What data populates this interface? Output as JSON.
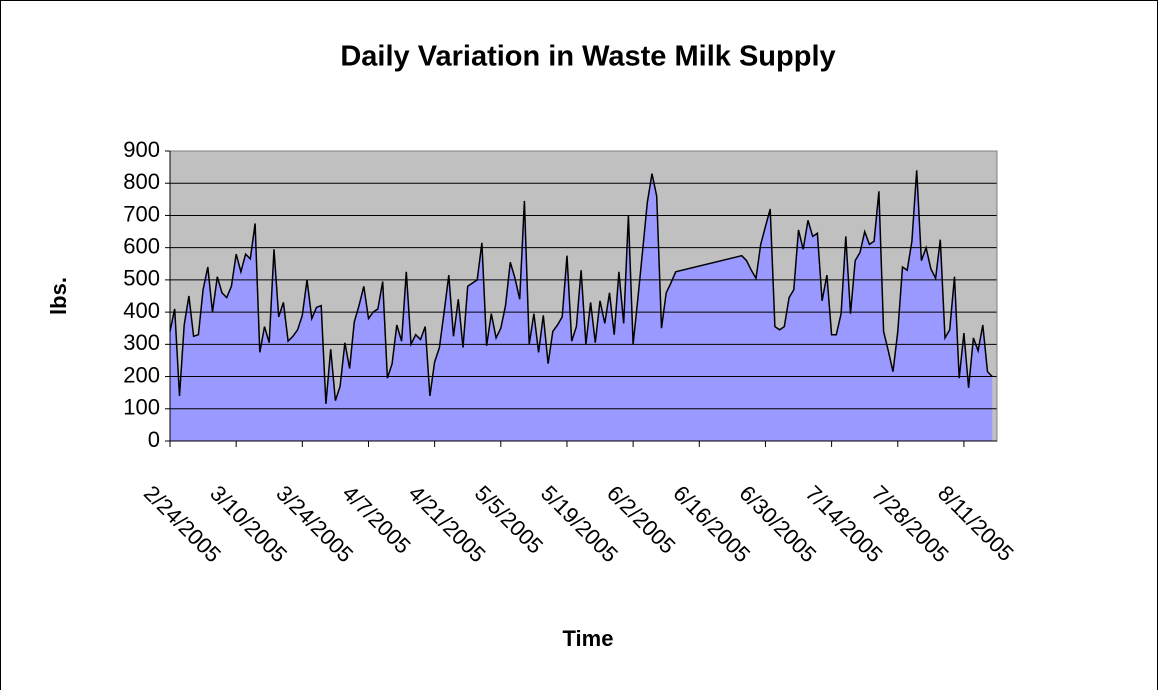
{
  "chart_data": {
    "type": "area",
    "title": "Daily Variation in Waste Milk Supply",
    "x_label": "Time",
    "y_label": "lbs.",
    "x": [
      "2/24/2005",
      "2/25/2005",
      "2/26/2005",
      "2/27/2005",
      "2/28/2005",
      "3/1/2005",
      "3/2/2005",
      "3/3/2005",
      "3/4/2005",
      "3/5/2005",
      "3/6/2005",
      "3/7/2005",
      "3/8/2005",
      "3/9/2005",
      "3/10/2005",
      "3/11/2005",
      "3/12/2005",
      "3/13/2005",
      "3/14/2005",
      "3/15/2005",
      "3/16/2005",
      "3/17/2005",
      "3/18/2005",
      "3/19/2005",
      "3/20/2005",
      "3/21/2005",
      "3/22/2005",
      "3/23/2005",
      "3/24/2005",
      "3/25/2005",
      "3/26/2005",
      "3/27/2005",
      "3/28/2005",
      "3/29/2005",
      "3/30/2005",
      "3/31/2005",
      "4/1/2005",
      "4/2/2005",
      "4/3/2005",
      "4/4/2005",
      "4/5/2005",
      "4/6/2005",
      "4/7/2005",
      "4/8/2005",
      "4/9/2005",
      "4/10/2005",
      "4/11/2005",
      "4/12/2005",
      "4/13/2005",
      "4/14/2005",
      "4/15/2005",
      "4/16/2005",
      "4/17/2005",
      "4/18/2005",
      "4/19/2005",
      "4/20/2005",
      "4/21/2005",
      "4/22/2005",
      "4/23/2005",
      "4/24/2005",
      "4/25/2005",
      "4/26/2005",
      "4/27/2005",
      "4/28/2005",
      "4/29/2005",
      "4/30/2005",
      "5/1/2005",
      "5/2/2005",
      "5/3/2005",
      "5/4/2005",
      "5/5/2005",
      "5/6/2005",
      "5/7/2005",
      "5/8/2005",
      "5/9/2005",
      "5/10/2005",
      "5/11/2005",
      "5/12/2005",
      "5/13/2005",
      "5/14/2005",
      "5/15/2005",
      "5/16/2005",
      "5/17/2005",
      "5/18/2005",
      "5/19/2005",
      "5/20/2005",
      "5/21/2005",
      "5/22/2005",
      "5/23/2005",
      "5/24/2005",
      "5/25/2005",
      "5/26/2005",
      "5/27/2005",
      "5/28/2005",
      "5/29/2005",
      "5/30/2005",
      "5/31/2005",
      "6/1/2005",
      "6/2/2005",
      "6/3/2005",
      "6/4/2005",
      "6/5/2005",
      "6/6/2005",
      "6/7/2005",
      "6/8/2005",
      "6/9/2005",
      "6/10/2005",
      "6/11/2005",
      "6/25/2005",
      "6/26/2005",
      "6/27/2005",
      "6/28/2005",
      "6/29/2005",
      "6/30/2005",
      "7/1/2005",
      "7/2/2005",
      "7/3/2005",
      "7/4/2005",
      "7/5/2005",
      "7/6/2005",
      "7/7/2005",
      "7/8/2005",
      "7/9/2005",
      "7/10/2005",
      "7/11/2005",
      "7/12/2005",
      "7/13/2005",
      "7/14/2005",
      "7/15/2005",
      "7/16/2005",
      "7/17/2005",
      "7/18/2005",
      "7/19/2005",
      "7/20/2005",
      "7/21/2005",
      "7/22/2005",
      "7/23/2005",
      "7/24/2005",
      "7/25/2005",
      "7/26/2005",
      "7/27/2005",
      "7/28/2005",
      "7/29/2005",
      "7/30/2005",
      "7/31/2005",
      "8/1/2005",
      "8/2/2005",
      "8/3/2005",
      "8/4/2005",
      "8/5/2005",
      "8/6/2005",
      "8/7/2005",
      "8/8/2005",
      "8/9/2005",
      "8/10/2005",
      "8/11/2005",
      "8/12/2005",
      "8/13/2005",
      "8/14/2005",
      "8/15/2005",
      "8/16/2005",
      "8/17/2005"
    ],
    "values": [
      340,
      410,
      140,
      360,
      450,
      325,
      330,
      470,
      540,
      400,
      510,
      460,
      445,
      480,
      580,
      525,
      580,
      565,
      675,
      275,
      355,
      305,
      595,
      385,
      430,
      310,
      325,
      345,
      390,
      500,
      380,
      415,
      420,
      115,
      285,
      125,
      170,
      305,
      225,
      370,
      420,
      480,
      380,
      400,
      410,
      495,
      195,
      240,
      360,
      310,
      525,
      300,
      330,
      315,
      355,
      140,
      245,
      290,
      400,
      515,
      325,
      440,
      290,
      480,
      490,
      500,
      615,
      295,
      395,
      320,
      350,
      420,
      555,
      505,
      440,
      745,
      300,
      395,
      275,
      390,
      240,
      340,
      360,
      385,
      575,
      310,
      355,
      530,
      300,
      430,
      305,
      435,
      365,
      460,
      330,
      525,
      365,
      700,
      300,
      440,
      590,
      740,
      830,
      760,
      350,
      460,
      490,
      525,
      575,
      560,
      530,
      505,
      610,
      665,
      720,
      355,
      345,
      355,
      445,
      470,
      655,
      595,
      685,
      635,
      645,
      435,
      515,
      330,
      330,
      395,
      635,
      395,
      560,
      585,
      650,
      610,
      620,
      775,
      340,
      280,
      215,
      340,
      540,
      530,
      620,
      840,
      560,
      600,
      535,
      505,
      625,
      320,
      345,
      510,
      195,
      335,
      165,
      320,
      280,
      360,
      215,
      200
    ],
    "color": "#9999ff",
    "line_color": "#000000",
    "plot_background": "#c0c0c0",
    "xlim": [
      "2/24/2005",
      "8/18/2005"
    ],
    "xticks": [
      "2/24/2005",
      "3/10/2005",
      "3/24/2005",
      "4/7/2005",
      "4/21/2005",
      "5/5/2005",
      "5/19/2005",
      "6/2/2005",
      "6/16/2005",
      "6/30/2005",
      "7/14/2005",
      "7/28/2005",
      "8/11/2005"
    ],
    "ylim": [
      0,
      900
    ],
    "yticks": [
      0,
      100,
      200,
      300,
      400,
      500,
      600,
      700,
      800,
      900
    ],
    "grid": true
  }
}
